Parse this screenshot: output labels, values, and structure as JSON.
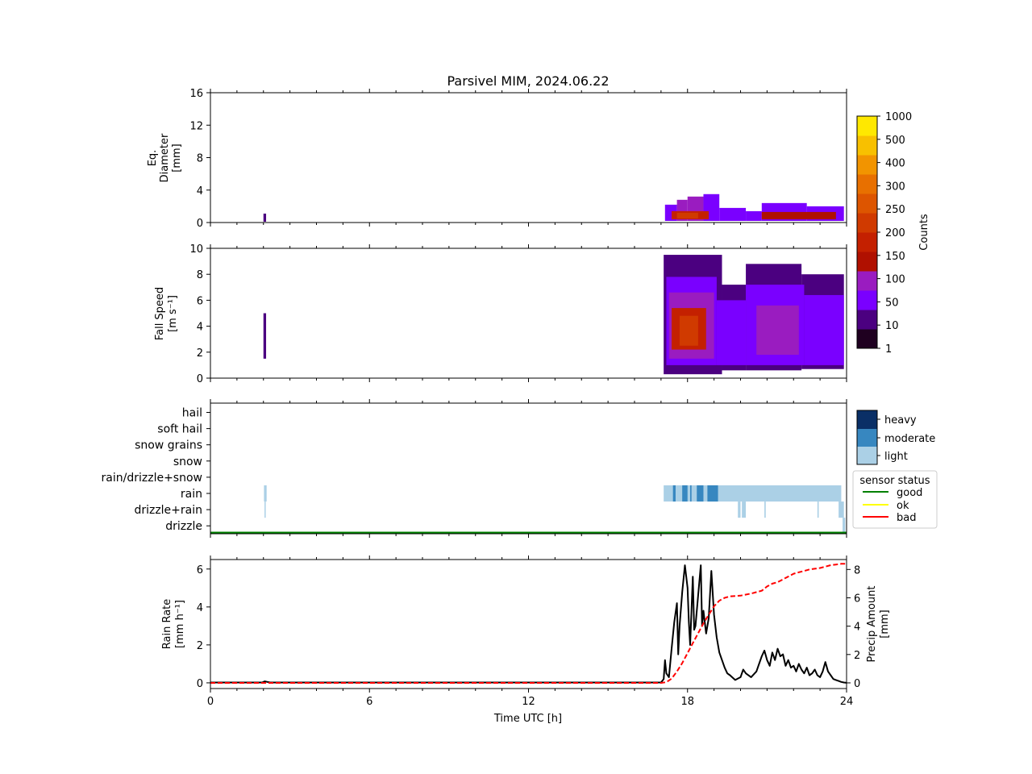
{
  "figure": {
    "title": "Parsivel MIM, 2024.06.22"
  },
  "chart_data": [
    {
      "id": "diameter",
      "type": "heatmap",
      "ylabel_lines": [
        "Eq.",
        "Diameter",
        "[mm]"
      ],
      "xlim": [
        0,
        24
      ],
      "ylim": [
        0,
        16
      ],
      "yticks": [
        0,
        4,
        8,
        12,
        16
      ],
      "ytick_labels": [
        "0",
        "4",
        "8",
        "12",
        "16"
      ],
      "cells": [
        {
          "t0": 2.0,
          "t1": 2.1,
          "y0": 0.1,
          "y1": 1.1,
          "level": 1
        },
        {
          "t0": 17.15,
          "t1": 17.6,
          "y0": 0.2,
          "y1": 2.2,
          "level": 2
        },
        {
          "t0": 17.6,
          "t1": 18.0,
          "y0": 0.2,
          "y1": 2.8,
          "level": 3
        },
        {
          "t0": 18.0,
          "t1": 18.6,
          "y0": 0.2,
          "y1": 3.2,
          "level": 3
        },
        {
          "t0": 18.6,
          "t1": 19.2,
          "y0": 0.2,
          "y1": 3.5,
          "level": 2
        },
        {
          "t0": 19.2,
          "t1": 20.2,
          "y0": 0.2,
          "y1": 1.8,
          "level": 2
        },
        {
          "t0": 20.2,
          "t1": 20.8,
          "y0": 0.2,
          "y1": 1.4,
          "level": 2
        },
        {
          "t0": 20.8,
          "t1": 22.5,
          "y0": 0.2,
          "y1": 2.4,
          "level": 2
        },
        {
          "t0": 22.5,
          "t1": 23.9,
          "y0": 0.2,
          "y1": 2.0,
          "level": 2
        },
        {
          "t0": 17.4,
          "t1": 18.8,
          "y0": 0.4,
          "y1": 1.4,
          "level": 5
        },
        {
          "t0": 17.6,
          "t1": 18.4,
          "y0": 0.5,
          "y1": 1.2,
          "level": 6
        },
        {
          "t0": 20.8,
          "t1": 23.6,
          "y0": 0.4,
          "y1": 1.3,
          "level": 4
        }
      ]
    },
    {
      "id": "fallspeed",
      "type": "heatmap",
      "ylabel_lines": [
        "Fall Speed",
        "[m s⁻¹]"
      ],
      "xlim": [
        0,
        24
      ],
      "ylim": [
        0,
        10
      ],
      "yticks": [
        0,
        2,
        4,
        6,
        8,
        10
      ],
      "ytick_labels": [
        "0",
        "2",
        "4",
        "6",
        "8",
        "10"
      ],
      "cells": [
        {
          "t0": 2.0,
          "t1": 2.1,
          "y0": 1.5,
          "y1": 5.0,
          "level": 1
        },
        {
          "t0": 17.1,
          "t1": 19.3,
          "y0": 0.3,
          "y1": 9.5,
          "level": 1
        },
        {
          "t0": 19.3,
          "t1": 20.2,
          "y0": 0.6,
          "y1": 7.2,
          "level": 1
        },
        {
          "t0": 20.2,
          "t1": 22.3,
          "y0": 0.6,
          "y1": 8.8,
          "level": 1
        },
        {
          "t0": 22.3,
          "t1": 23.9,
          "y0": 0.7,
          "y1": 8.0,
          "level": 1
        },
        {
          "t0": 17.2,
          "t1": 19.1,
          "y0": 1.0,
          "y1": 7.8,
          "level": 2
        },
        {
          "t0": 19.1,
          "t1": 20.2,
          "y0": 1.0,
          "y1": 6.0,
          "level": 2
        },
        {
          "t0": 20.2,
          "t1": 22.4,
          "y0": 1.0,
          "y1": 7.2,
          "level": 2
        },
        {
          "t0": 22.4,
          "t1": 23.9,
          "y0": 1.0,
          "y1": 6.4,
          "level": 2
        },
        {
          "t0": 17.3,
          "t1": 19.0,
          "y0": 1.5,
          "y1": 6.6,
          "level": 3
        },
        {
          "t0": 20.6,
          "t1": 22.2,
          "y0": 1.8,
          "y1": 5.6,
          "level": 3
        },
        {
          "t0": 17.4,
          "t1": 18.7,
          "y0": 2.2,
          "y1": 5.4,
          "level": 5
        },
        {
          "t0": 17.7,
          "t1": 18.4,
          "y0": 2.5,
          "y1": 4.8,
          "level": 6
        }
      ]
    },
    {
      "id": "precip_type",
      "type": "heatmap",
      "categories": [
        "hail",
        "soft hail",
        "snow grains",
        "snow",
        "rain/drizzle+snow",
        "rain",
        "drizzle+rain",
        "drizzle"
      ],
      "xlim": [
        0,
        24
      ],
      "intensity_labels": [
        "heavy",
        "moderate",
        "light"
      ],
      "intensity_colors": [
        "#0a2f66",
        "#3787c0",
        "#abd0e6"
      ],
      "bars": [
        {
          "cat": "rain",
          "t0": 2.02,
          "t1": 2.12,
          "intensity": "light"
        },
        {
          "cat": "drizzle+rain",
          "t0": 2.04,
          "t1": 2.08,
          "intensity": "light"
        },
        {
          "cat": "rain",
          "t0": 17.1,
          "t1": 23.8,
          "intensity": "light"
        },
        {
          "cat": "rain",
          "t0": 17.45,
          "t1": 17.55,
          "intensity": "moderate"
        },
        {
          "cat": "rain",
          "t0": 17.8,
          "t1": 18.0,
          "intensity": "moderate"
        },
        {
          "cat": "rain",
          "t0": 18.1,
          "t1": 18.15,
          "intensity": "moderate"
        },
        {
          "cat": "rain",
          "t0": 18.35,
          "t1": 18.6,
          "intensity": "moderate"
        },
        {
          "cat": "rain",
          "t0": 18.75,
          "t1": 19.15,
          "intensity": "moderate"
        },
        {
          "cat": "drizzle+rain",
          "t0": 19.9,
          "t1": 20.0,
          "intensity": "light"
        },
        {
          "cat": "drizzle+rain",
          "t0": 20.05,
          "t1": 20.2,
          "intensity": "light"
        },
        {
          "cat": "drizzle+rain",
          "t0": 20.9,
          "t1": 20.95,
          "intensity": "light"
        },
        {
          "cat": "drizzle+rain",
          "t0": 22.9,
          "t1": 22.95,
          "intensity": "light"
        },
        {
          "cat": "drizzle+rain",
          "t0": 23.7,
          "t1": 23.9,
          "intensity": "light"
        },
        {
          "cat": "drizzle",
          "t0": 23.85,
          "t1": 23.95,
          "intensity": "light"
        }
      ],
      "sensor_status": {
        "title": "sensor status",
        "legend": [
          {
            "label": "good",
            "color": "#008000"
          },
          {
            "label": "ok",
            "color": "#ffff00"
          },
          {
            "label": "bad",
            "color": "#ff0000"
          }
        ],
        "segments": [
          {
            "t0": 0,
            "t1": 24,
            "status": "good"
          }
        ]
      }
    },
    {
      "id": "rain_rate",
      "type": "line",
      "xlabel": "Time UTC [h]",
      "ylabel_lines": [
        "Rain Rate",
        "[mm h⁻¹]"
      ],
      "y2label_lines": [
        "Precip Amount",
        "[mm]"
      ],
      "xlim": [
        0,
        24
      ],
      "xticks": [
        0,
        6,
        12,
        18,
        24
      ],
      "xtick_labels": [
        "0",
        "6",
        "12",
        "18",
        "24"
      ],
      "ylim": [
        -0.3,
        6.5
      ],
      "yticks": [
        0,
        2,
        4,
        6
      ],
      "ytick_labels": [
        "0",
        "2",
        "4",
        "6"
      ],
      "y2lim": [
        -0.4,
        8.7
      ],
      "y2ticks": [
        0,
        2,
        4,
        6,
        8
      ],
      "y2tick_labels": [
        "0",
        "2",
        "4",
        "6",
        "8"
      ],
      "series": [
        {
          "name": "",
          "color": "#000000",
          "style": "solid",
          "axis": "left",
          "x": [
            0,
            1.95,
            2.05,
            2.15,
            2.25,
            17.0,
            17.1,
            17.15,
            17.2,
            17.3,
            17.4,
            17.5,
            17.6,
            17.65,
            17.7,
            17.8,
            17.9,
            18.0,
            18.05,
            18.1,
            18.2,
            18.25,
            18.3,
            18.4,
            18.5,
            18.55,
            18.6,
            18.7,
            18.8,
            18.9,
            19.0,
            19.1,
            19.2,
            19.3,
            19.4,
            19.5,
            19.6,
            19.8,
            20.0,
            20.1,
            20.2,
            20.4,
            20.6,
            20.8,
            20.9,
            21.0,
            21.1,
            21.2,
            21.3,
            21.4,
            21.5,
            21.6,
            21.7,
            21.8,
            21.9,
            22.0,
            22.1,
            22.2,
            22.3,
            22.4,
            22.5,
            22.6,
            22.7,
            22.8,
            22.9,
            23.0,
            23.1,
            23.2,
            23.3,
            23.4,
            23.5,
            23.6,
            23.7,
            23.8,
            23.9,
            24.0
          ],
          "y": [
            0.02,
            0.02,
            0.08,
            0.05,
            0.02,
            0.02,
            0.2,
            1.2,
            0.5,
            0.3,
            1.8,
            3.2,
            4.2,
            1.5,
            3.0,
            4.8,
            6.2,
            5.0,
            3.2,
            2.0,
            5.6,
            2.8,
            3.0,
            4.6,
            6.2,
            3.0,
            3.8,
            2.6,
            3.4,
            5.9,
            3.6,
            2.4,
            1.6,
            1.2,
            0.8,
            0.5,
            0.4,
            0.15,
            0.3,
            0.7,
            0.5,
            0.3,
            0.6,
            1.4,
            1.7,
            1.2,
            0.9,
            1.6,
            1.2,
            1.8,
            1.4,
            1.5,
            0.9,
            1.2,
            0.8,
            0.9,
            0.6,
            1.0,
            0.7,
            0.5,
            0.8,
            0.4,
            0.5,
            0.7,
            0.4,
            0.3,
            0.6,
            1.1,
            0.6,
            0.4,
            0.2,
            0.15,
            0.1,
            0.05,
            0.02,
            0.0
          ]
        },
        {
          "name": "",
          "color": "#ff0000",
          "style": "dashed",
          "axis": "right",
          "x": [
            0,
            17.0,
            17.2,
            17.4,
            17.6,
            17.8,
            18.0,
            18.2,
            18.4,
            18.6,
            18.8,
            19.0,
            19.2,
            19.4,
            19.6,
            20.0,
            20.4,
            20.8,
            21.0,
            21.2,
            21.4,
            21.6,
            21.8,
            22.0,
            22.2,
            22.4,
            22.6,
            22.8,
            23.0,
            23.2,
            23.4,
            23.6,
            23.8,
            24.0
          ],
          "y": [
            0,
            0,
            0.05,
            0.3,
            0.8,
            1.4,
            2.1,
            2.8,
            3.5,
            4.2,
            4.8,
            5.4,
            5.8,
            6.0,
            6.1,
            6.15,
            6.3,
            6.5,
            6.8,
            7.0,
            7.1,
            7.3,
            7.5,
            7.7,
            7.8,
            7.9,
            8.0,
            8.05,
            8.1,
            8.2,
            8.3,
            8.35,
            8.4,
            8.4
          ]
        }
      ]
    }
  ],
  "colorbar": {
    "label": "Counts",
    "levels": [
      "1",
      "10",
      "50",
      "100",
      "150",
      "200",
      "250",
      "300",
      "400",
      "500",
      "1000"
    ],
    "colors": [
      "#1f0020",
      "#4b0080",
      "#7a00ff",
      "#9a1cc0",
      "#b01000",
      "#c42000",
      "#d03a00",
      "#dd5500",
      "#e87000",
      "#f29400",
      "#f8c000",
      "#ffe800"
    ]
  }
}
